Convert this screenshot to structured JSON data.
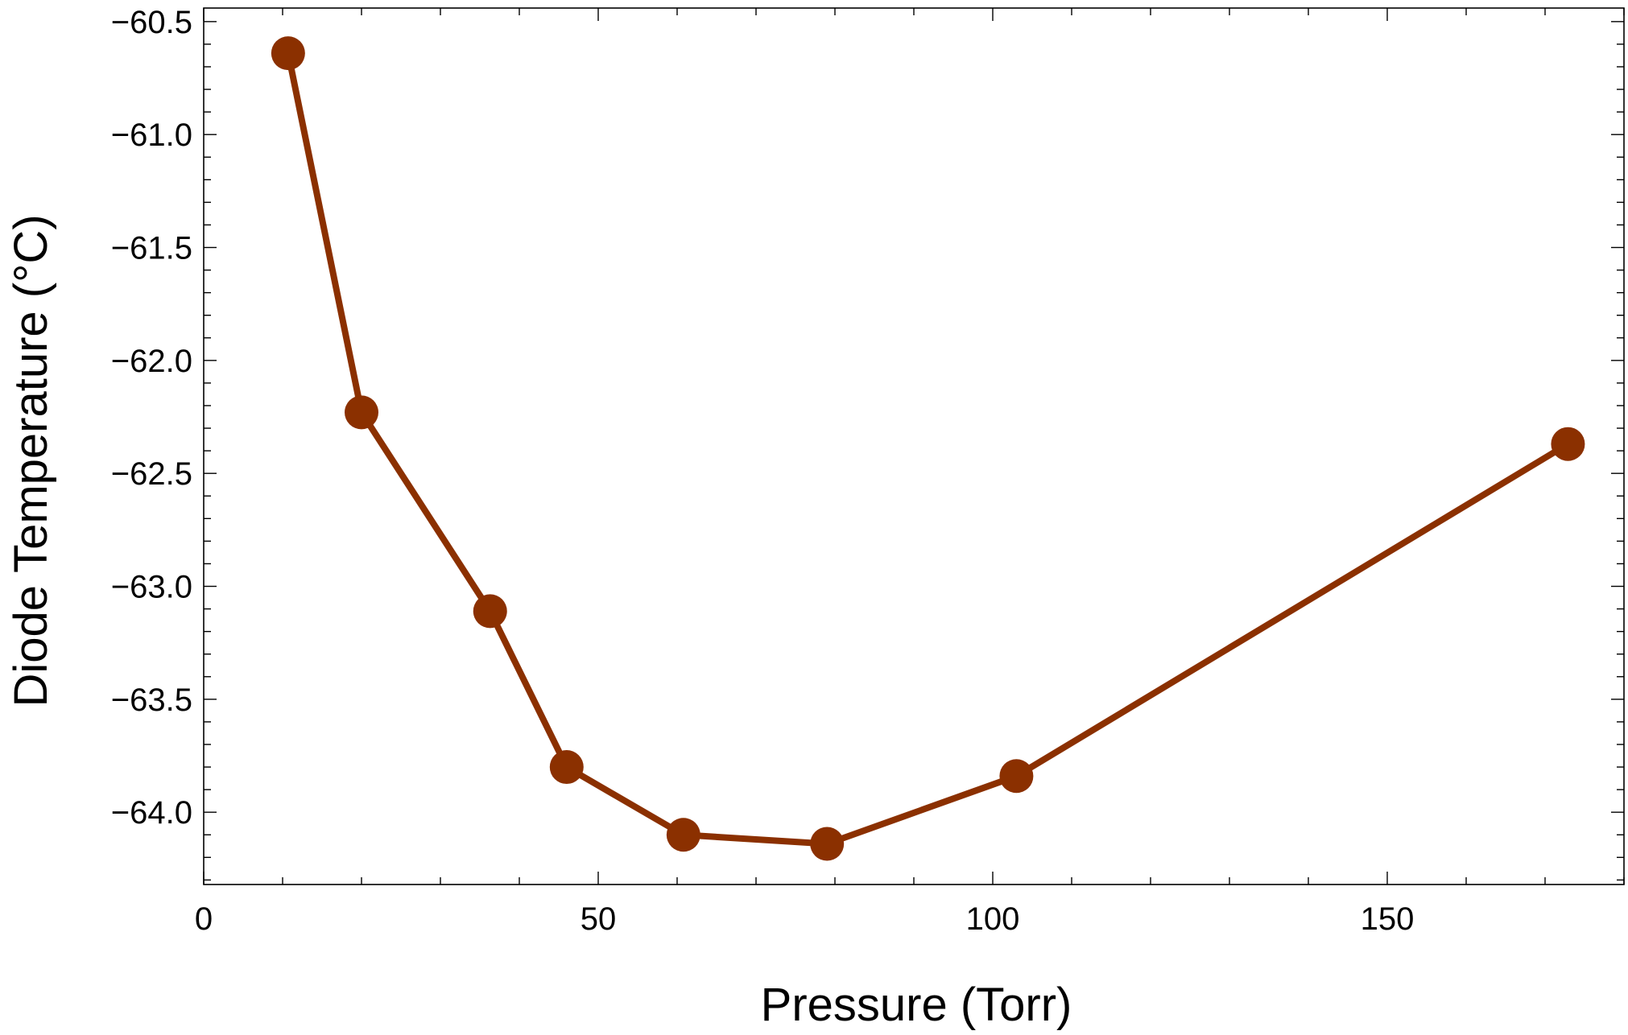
{
  "chart_data": {
    "type": "line",
    "title": "",
    "xlabel": "Pressure (Torr)",
    "ylabel": "Diode Temperature (°C)",
    "xlim": [
      0,
      180
    ],
    "ylim": [
      -64.32,
      -60.44
    ],
    "x_ticks": [
      0,
      50,
      100,
      150
    ],
    "x_tick_labels": [
      "0",
      "50",
      "100",
      "150"
    ],
    "y_ticks": [
      -64.0,
      -63.5,
      -63.0,
      -62.5,
      -62.0,
      -61.5,
      -61.0,
      -60.5
    ],
    "y_tick_labels": [
      "−64.0",
      "−63.5",
      "−63.0",
      "−62.5",
      "−62.0",
      "−61.5",
      "−61.0",
      "−60.5"
    ],
    "grid": false,
    "legend": "none",
    "series": [
      {
        "color": "#8b3000",
        "x": [
          10.7,
          20.0,
          36.3,
          46.0,
          60.8,
          79.0,
          103.0,
          172.9
        ],
        "y": [
          -60.64,
          -62.23,
          -63.11,
          -63.8,
          -64.1,
          -64.14,
          -63.84,
          -62.37
        ]
      }
    ]
  }
}
